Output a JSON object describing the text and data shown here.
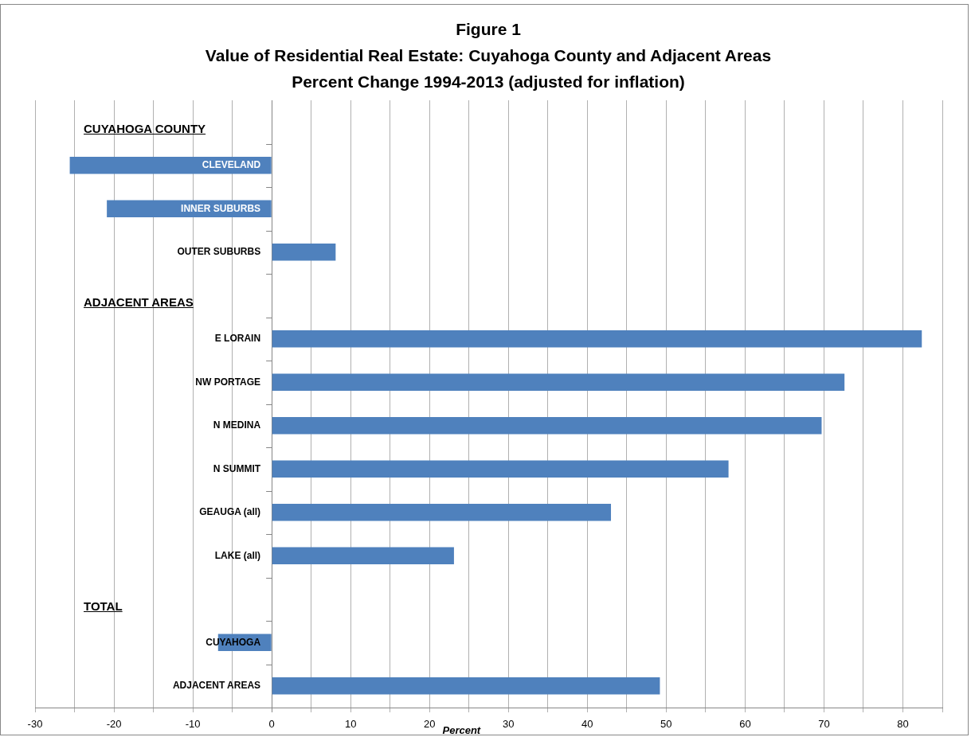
{
  "chart_data": {
    "type": "bar",
    "orientation": "horizontal",
    "title": "Figure 1\nValue of Residential Real Estate: Cuyahoga County and Adjacent Areas\nPercent Change 1994-2013 (adjusted for inflation)",
    "xlabel": "Percent",
    "categories": [
      "CUYAHOGA COUNTY",
      "CLEVELAND",
      "INNER SUBURBS",
      "OUTER SUBURBS",
      "ADJACENT AREAS",
      "E LORAIN",
      "NW PORTAGE",
      "N MEDINA",
      "N SUMMIT",
      "GEAUGA (all)",
      "LAKE (all)",
      "TOTAL",
      "CUYAHOGA",
      "ADJACENT AREAS"
    ],
    "values": [
      null,
      -25.6,
      -20.9,
      8.1,
      null,
      82.4,
      72.6,
      69.7,
      57.9,
      43.0,
      23.1,
      null,
      -6.8,
      49.2
    ],
    "color": "#4f81bd",
    "xlim": [
      -30,
      85
    ],
    "xticks": [
      -30,
      {
        "value": -25,
        "label": null
      },
      -20,
      {
        "value": -15,
        "label": null
      },
      -10,
      {
        "value": -5,
        "label": null
      },
      0,
      {
        "value": 5,
        "label": null
      },
      10,
      {
        "value": 15,
        "label": null
      },
      20,
      {
        "value": 25,
        "label": null
      },
      30,
      {
        "value": 35,
        "label": null
      },
      40,
      {
        "value": 45,
        "label": null
      },
      50,
      {
        "value": 55,
        "label": null
      },
      60,
      {
        "value": 65,
        "label": null
      },
      70,
      {
        "value": 75,
        "label": null
      },
      80,
      {
        "value": 85,
        "label": null
      }
    ],
    "grid": "x",
    "legend": false
  }
}
